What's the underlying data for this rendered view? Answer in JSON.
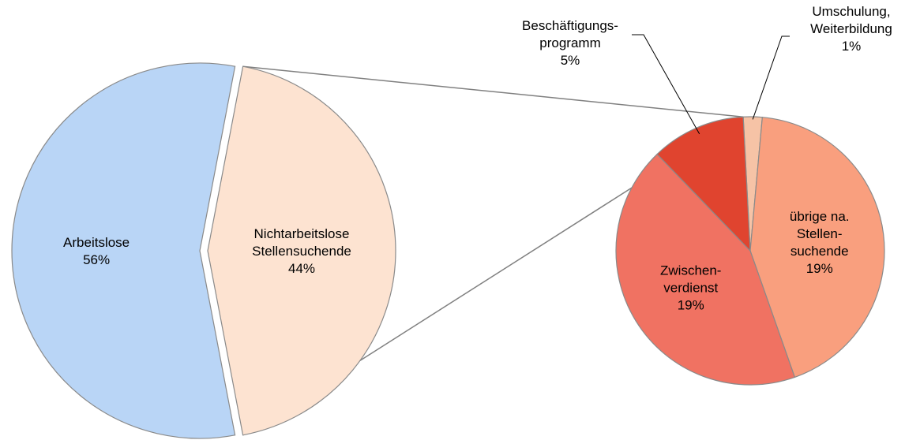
{
  "chart_data": [
    {
      "type": "pie",
      "categories": [
        [
          "Arbeitslose"
        ],
        [
          "Nichtarbeitslose",
          "Stellensuchende"
        ]
      ],
      "values": [
        56,
        44
      ],
      "value_labels": [
        "56%",
        "44%"
      ],
      "colors": [
        "#b9d5f6",
        "#fde3d1"
      ]
    },
    {
      "type": "pie",
      "categories": [
        [
          "Umschulung,",
          "Weiterbildung"
        ],
        [
          "übrige na.",
          "Stellen-",
          "suchende"
        ],
        [
          "Zwischen-",
          "verdienst"
        ],
        [
          "Beschäftigungs-",
          "programm"
        ]
      ],
      "values": [
        1,
        19,
        19,
        5
      ],
      "value_labels": [
        "1%",
        "19%",
        "19%",
        "5%"
      ],
      "colors": [
        "#f6c3a6",
        "#f99f7e",
        "#f07262",
        "#e0442f"
      ]
    }
  ]
}
